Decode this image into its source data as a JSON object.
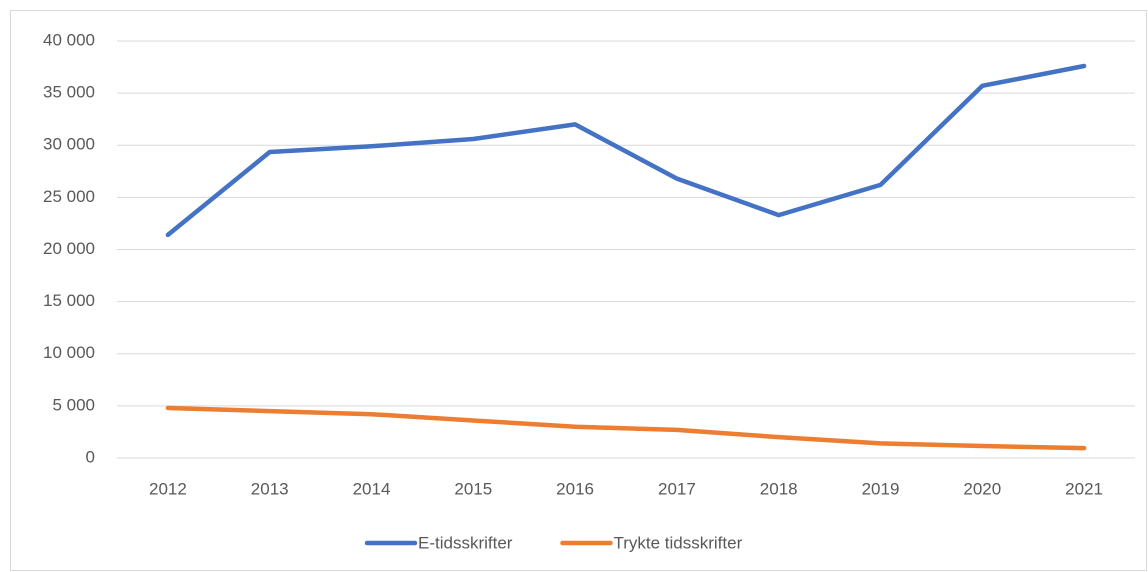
{
  "chart_data": {
    "type": "line",
    "categories": [
      "2012",
      "2013",
      "2014",
      "2015",
      "2016",
      "2017",
      "2018",
      "2019",
      "2020",
      "2021"
    ],
    "series": [
      {
        "name": "E-tidsskrifter",
        "color": "#4472c4",
        "values": [
          21400,
          29350,
          29900,
          30600,
          32000,
          26800,
          23300,
          26200,
          35700,
          37600
        ]
      },
      {
        "name": "Trykte tidsskrifter",
        "color": "#ed7d31",
        "values": [
          4800,
          4500,
          4200,
          3600,
          3000,
          2700,
          2000,
          1400,
          1150,
          950
        ]
      }
    ],
    "ylim": [
      0,
      40000
    ],
    "yticks": [
      0,
      {
        "value": 5000,
        "label": "5 000"
      },
      {
        "value": 10000,
        "label": "10 000"
      },
      {
        "value": 15000,
        "label": "15 000"
      },
      {
        "value": 20000,
        "label": "20 000"
      },
      {
        "value": 25000,
        "label": "25 000"
      },
      {
        "value": 30000,
        "label": "30 000"
      },
      {
        "value": 35000,
        "label": "35 000"
      },
      {
        "value": 40000,
        "label": "40 000"
      }
    ],
    "grid": true,
    "legend": "bottom"
  }
}
